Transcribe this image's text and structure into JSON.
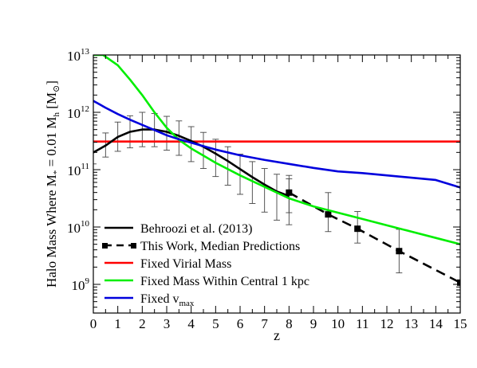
{
  "chart_data": {
    "type": "line",
    "title": "",
    "xlabel": "z",
    "ylabel_main": "Halo Mass Where M",
    "ylabel_sub1": "*",
    "ylabel_mid": " = 0.01 M",
    "ylabel_sub2": "h",
    "ylabel_end": " [M",
    "ylabel_sun": "⊙",
    "ylabel_close": "]",
    "xlim": [
      0,
      15
    ],
    "ylim_log10": [
      8.5,
      13
    ],
    "xticks": [
      0,
      1,
      2,
      3,
      4,
      5,
      6,
      7,
      8,
      9,
      10,
      11,
      12,
      13,
      14,
      15
    ],
    "yticks": [
      {
        "base": "10",
        "exp": "9",
        "log10": 9
      },
      {
        "base": "10",
        "exp": "10",
        "log10": 10
      },
      {
        "base": "10",
        "exp": "11",
        "log10": 11
      },
      {
        "base": "10",
        "exp": "12",
        "log10": 12
      },
      {
        "base": "10",
        "exp": "13",
        "log10": 13
      }
    ],
    "y_scale": "log",
    "grid": false,
    "legend_position": "bottom-left",
    "series": [
      {
        "name": "Behroozi et al. (2013)",
        "color": "#000000",
        "style": "solid",
        "x": [
          0,
          0.5,
          1,
          1.5,
          2,
          2.5,
          3,
          3.5,
          4,
          4.5,
          5,
          5.5,
          6,
          6.5,
          7,
          7.5,
          8
        ],
        "log10_y": [
          11.3,
          11.42,
          11.57,
          11.66,
          11.7,
          11.7,
          11.66,
          11.59,
          11.5,
          11.4,
          11.28,
          11.15,
          11.01,
          10.87,
          10.74,
          10.62,
          10.54
        ],
        "log10_err_low": [
          0.2,
          0.2,
          0.25,
          0.28,
          0.3,
          0.3,
          0.32,
          0.34,
          0.36,
          0.38,
          0.4,
          0.42,
          0.44,
          0.46,
          0.48,
          0.5,
          0.5
        ],
        "log10_err_high": [
          0.2,
          0.22,
          0.26,
          0.28,
          0.3,
          0.28,
          0.27,
          0.26,
          0.25,
          0.25,
          0.25,
          0.25,
          0.26,
          0.27,
          0.28,
          0.3,
          0.3
        ]
      },
      {
        "name": "This Work, Median Predictions",
        "color": "#000000",
        "style": "dashed",
        "marker": "square",
        "x": [
          8,
          9.6,
          10.8,
          12.5,
          15
        ],
        "log10_y": [
          10.6,
          10.22,
          9.97,
          9.58,
          9.03
        ],
        "log10_err_low": [
          0.35,
          0.3,
          0.25,
          0.38,
          0.53
        ],
        "log10_err_high": [
          0.3,
          0.38,
          0.3,
          0.38,
          0.52
        ]
      },
      {
        "name": "Fixed Virial Mass",
        "color": "#ff0000",
        "style": "solid",
        "x": [
          0,
          15
        ],
        "log10_y": [
          11.49,
          11.49
        ]
      },
      {
        "name": "Fixed Mass Within Central 1 kpc",
        "color": "#00ee00",
        "style": "solid",
        "x": [
          0,
          0.4,
          1,
          1.5,
          2,
          2.5,
          3,
          3.5,
          4,
          5,
          6,
          7,
          8,
          9,
          10,
          11,
          12,
          13,
          14,
          15
        ],
        "log10_y": [
          13.0,
          13.0,
          12.82,
          12.57,
          12.3,
          12.0,
          11.73,
          11.52,
          11.37,
          11.12,
          10.9,
          10.7,
          10.5,
          10.36,
          10.25,
          10.14,
          10.03,
          9.92,
          9.81,
          9.7
        ]
      },
      {
        "name": "Fixed v",
        "name_sub": "max",
        "color": "#0000dd",
        "style": "solid",
        "x": [
          0,
          0.5,
          1,
          1.5,
          2,
          2.5,
          3,
          3.5,
          4,
          5,
          6,
          7,
          8,
          9,
          10,
          11,
          12,
          13,
          14,
          15
        ],
        "log10_y": [
          12.2,
          12.08,
          11.97,
          11.87,
          11.78,
          11.69,
          11.6,
          11.53,
          11.47,
          11.35,
          11.25,
          11.17,
          11.1,
          11.03,
          10.97,
          10.94,
          10.9,
          10.86,
          10.82,
          10.69
        ]
      }
    ]
  }
}
